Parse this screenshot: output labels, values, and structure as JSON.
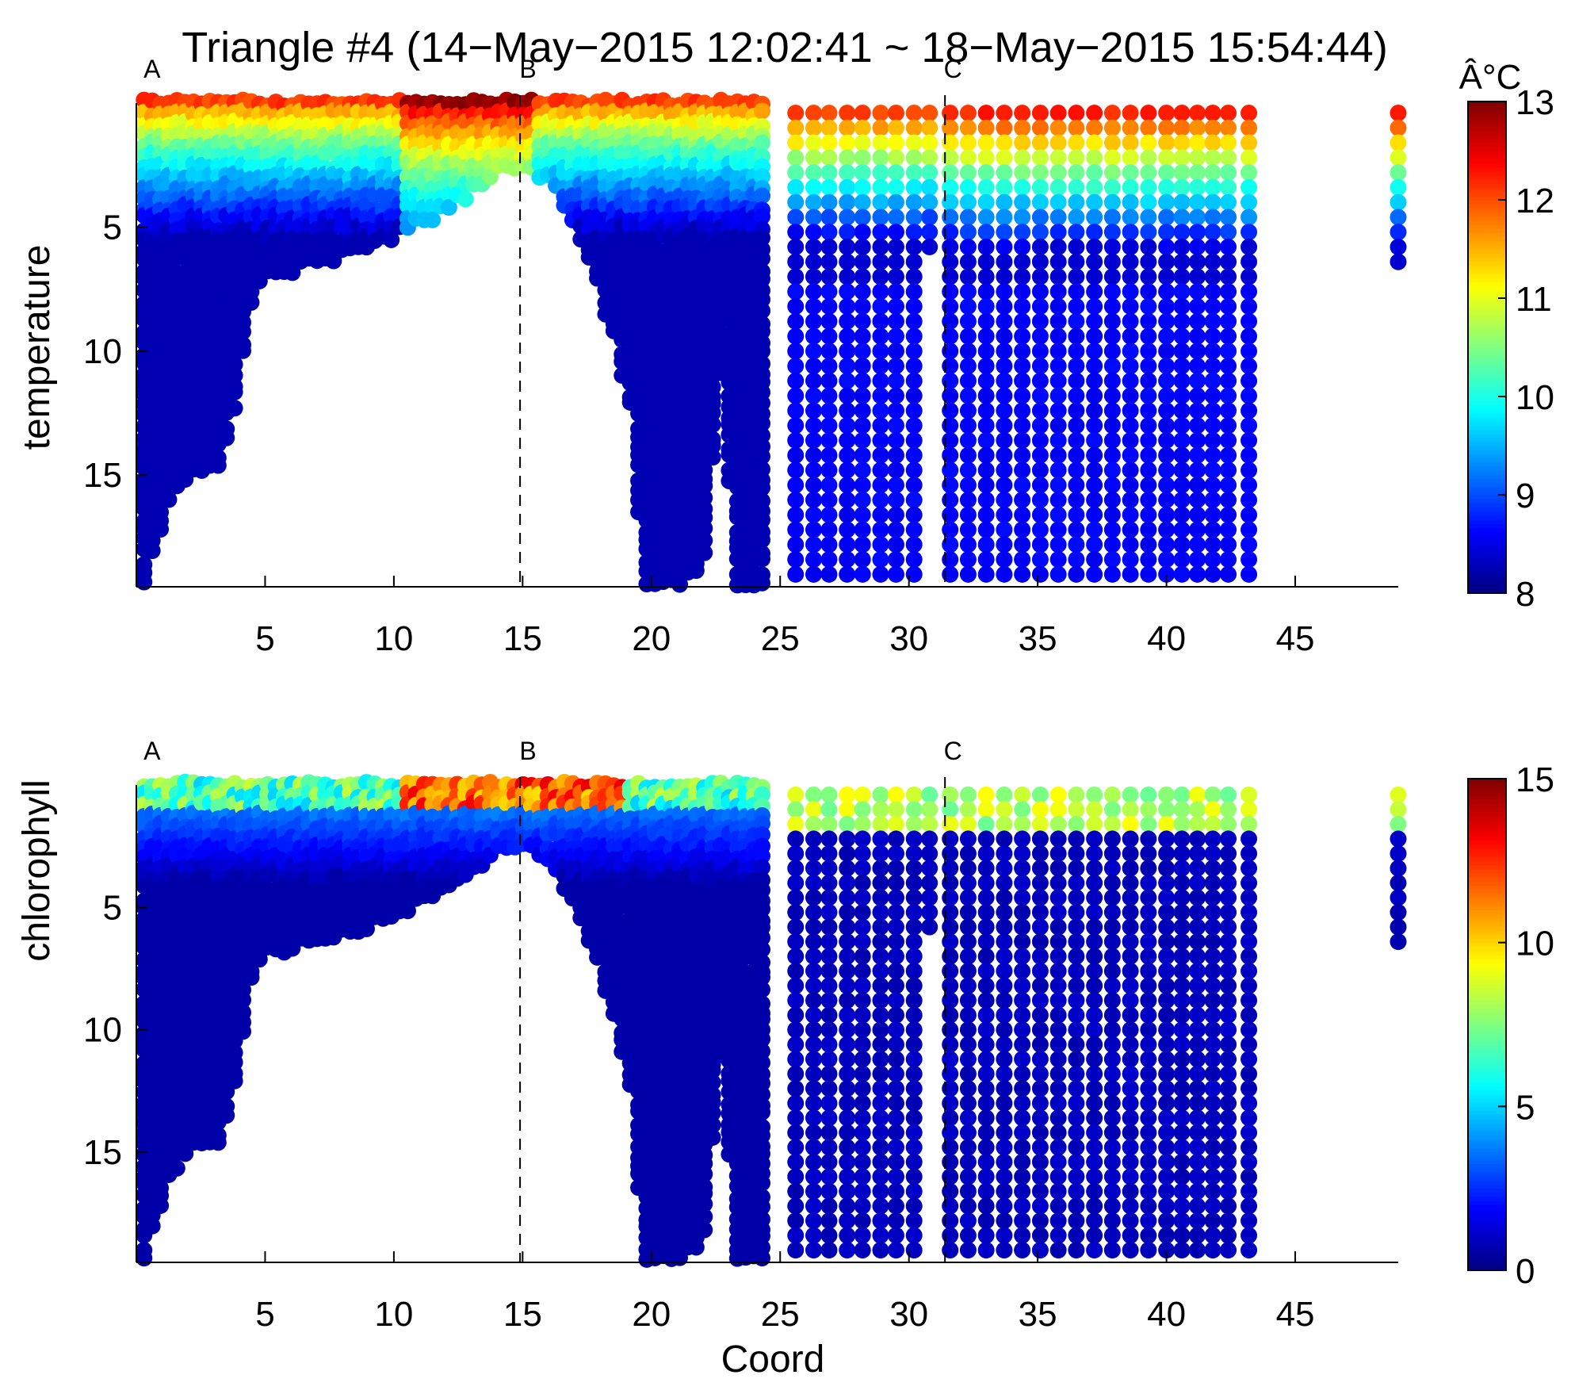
{
  "title": "Triangle #4 (14−May−2015 12:02:41 ~ 18−May−2015 15:54:44)",
  "xlabel": "Coord",
  "chart_data": [
    {
      "type": "scatter",
      "ylabel": "temperature",
      "colorbar_label": "Â°C",
      "clim": [
        8,
        13
      ],
      "colorbar_ticks": [
        "8",
        "9",
        "10",
        "11",
        "12",
        "13"
      ],
      "colormap": "jet",
      "xlim": [
        0,
        49
      ],
      "ylim": [
        0,
        19.5
      ],
      "y_reversed": true,
      "xticks": [
        "5",
        "10",
        "15",
        "20",
        "25",
        "30",
        "35",
        "40",
        "45"
      ],
      "yticks": [
        "5",
        "10",
        "15"
      ],
      "markers": [
        {
          "label": "A",
          "x": 0.3
        },
        {
          "label": "B",
          "x": 14.9,
          "dashed_line": true
        },
        {
          "label": "C",
          "x": 31.4,
          "dashed_line": true
        }
      ],
      "profile_summary": {
        "surface_value": 12.3,
        "bottom_value": 8.5,
        "stations_x": [
          0.3,
          1.3,
          2.0,
          2.6,
          3.2,
          3.8,
          4.5,
          5.2,
          6.0,
          6.8,
          7.6,
          8.5,
          9.4,
          10.3,
          11.2,
          12.1,
          13.0,
          13.8,
          14.5,
          15.2,
          16.0,
          16.8,
          17.6,
          18.4,
          19.2,
          19.7,
          20.3,
          20.8,
          21.4,
          22.0,
          22.7,
          23.3,
          23.9,
          24.5,
          25.6,
          26.3,
          26.9,
          27.6,
          28.2,
          28.9,
          29.5,
          30.2,
          30.8,
          31.6,
          32.3,
          33.0,
          33.7,
          34.4,
          35.1,
          35.8,
          36.5,
          37.2,
          37.9,
          38.6,
          39.3,
          40.0,
          40.6,
          41.2,
          41.8,
          42.4,
          43.2,
          49.0
        ],
        "bottom_depth_m": [
          19.5,
          16.0,
          15.0,
          14.8,
          14.9,
          12.5,
          8.0,
          6.8,
          6.8,
          6.3,
          6.4,
          6.1,
          5.8,
          5.3,
          4.8,
          4.3,
          3.8,
          3.0,
          2.6,
          2.8,
          3.3,
          4.5,
          6.5,
          9.0,
          12.5,
          19.5,
          19.5,
          19.5,
          19.3,
          18.8,
          11.0,
          19.5,
          19.5,
          19.5,
          19.5,
          19.5,
          19.5,
          19.5,
          19.5,
          19.5,
          19.5,
          19.5,
          6.0,
          19.5,
          19.5,
          19.5,
          19.5,
          19.5,
          19.5,
          19.5,
          19.5,
          19.5,
          19.5,
          19.5,
          19.5,
          19.5,
          19.5,
          19.5,
          19.5,
          19.5,
          19.5,
          6.6
        ]
      }
    },
    {
      "type": "scatter",
      "ylabel": "chlorophyll",
      "colorbar_label": "",
      "clim": [
        0,
        15
      ],
      "colorbar_ticks": [
        "0",
        "5",
        "10",
        "15"
      ],
      "colormap": "jet",
      "xlim": [
        0,
        49
      ],
      "ylim": [
        0,
        19.5
      ],
      "y_reversed": true,
      "xticks": [
        "5",
        "10",
        "15",
        "20",
        "25",
        "30",
        "35",
        "40",
        "45"
      ],
      "yticks": [
        "5",
        "10",
        "15"
      ],
      "markers": [
        {
          "label": "A",
          "x": 0.3
        },
        {
          "label": "B",
          "x": 14.9,
          "dashed_line": true
        },
        {
          "label": "C",
          "x": 31.4,
          "dashed_line": true
        }
      ],
      "profile_summary": {
        "surface_value": 11.0,
        "bottom_value": 0.5
      }
    }
  ]
}
